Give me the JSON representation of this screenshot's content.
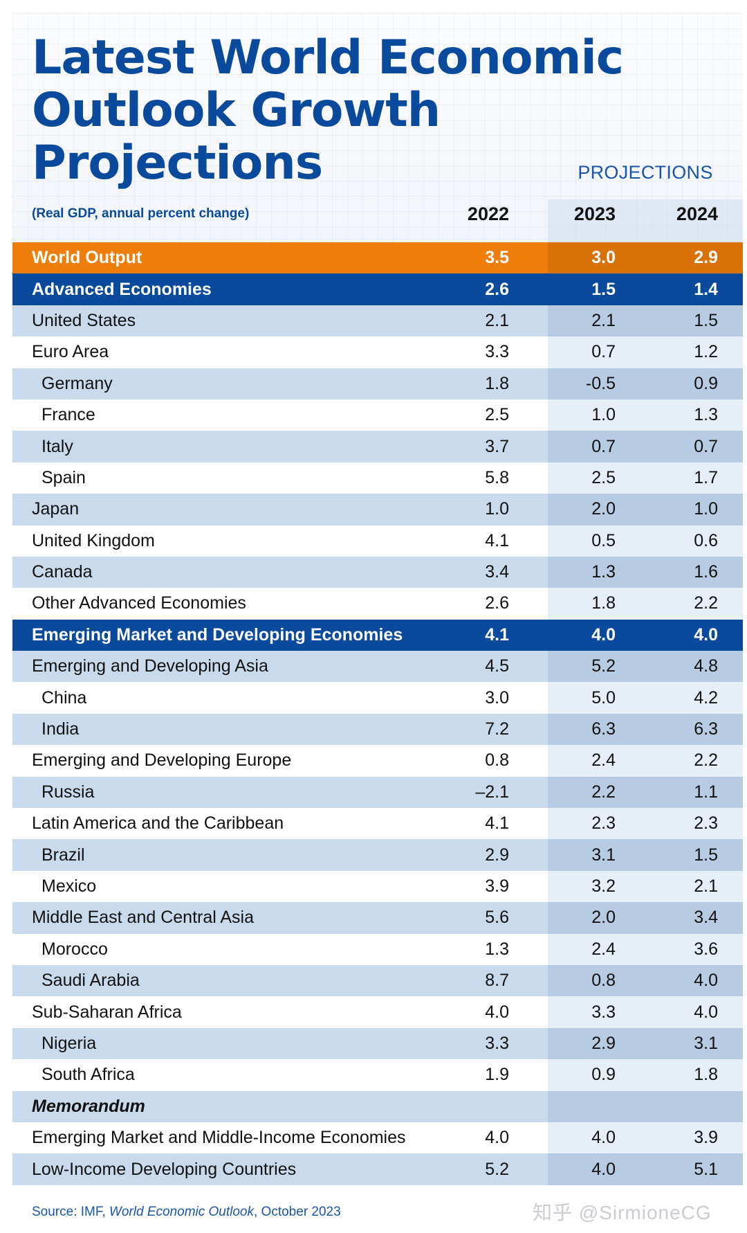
{
  "title": {
    "line1": "Latest World Economic",
    "line2": "Outlook Growth Projections"
  },
  "projections_label": "PROJECTIONS",
  "subheader": "(Real GDP, annual percent change)",
  "years": [
    "2022",
    "2023",
    "2024"
  ],
  "rows": [
    {
      "label": "World Output",
      "v": [
        "3.5",
        "3.0",
        "2.9"
      ]
    },
    {
      "label": "Advanced Economies",
      "v": [
        "2.6",
        "1.5",
        "1.4"
      ]
    },
    {
      "label": "United States",
      "v": [
        "2.1",
        "2.1",
        "1.5"
      ]
    },
    {
      "label": "Euro Area",
      "v": [
        "3.3",
        "0.7",
        "1.2"
      ]
    },
    {
      "label": "Germany",
      "v": [
        "1.8",
        "-0.5",
        "0.9"
      ]
    },
    {
      "label": "France",
      "v": [
        "2.5",
        "1.0",
        "1.3"
      ]
    },
    {
      "label": "Italy",
      "v": [
        "3.7",
        "0.7",
        "0.7"
      ]
    },
    {
      "label": "Spain",
      "v": [
        "5.8",
        "2.5",
        "1.7"
      ]
    },
    {
      "label": "Japan",
      "v": [
        "1.0",
        "2.0",
        "1.0"
      ]
    },
    {
      "label": "United Kingdom",
      "v": [
        "4.1",
        "0.5",
        "0.6"
      ]
    },
    {
      "label": "Canada",
      "v": [
        "3.4",
        "1.3",
        "1.6"
      ]
    },
    {
      "label": "Other Advanced Economies",
      "v": [
        "2.6",
        "1.8",
        "2.2"
      ]
    },
    {
      "label": "Emerging Market and Developing Economies",
      "v": [
        "4.1",
        "4.0",
        "4.0"
      ]
    },
    {
      "label": "Emerging and Developing Asia",
      "v": [
        "4.5",
        "5.2",
        "4.8"
      ]
    },
    {
      "label": "China",
      "v": [
        "3.0",
        "5.0",
        "4.2"
      ]
    },
    {
      "label": "India",
      "v": [
        "7.2",
        "6.3",
        "6.3"
      ]
    },
    {
      "label": "Emerging and Developing Europe",
      "v": [
        "0.8",
        "2.4",
        "2.2"
      ]
    },
    {
      "label": "Russia",
      "v": [
        "–2.1",
        "2.2",
        "1.1"
      ]
    },
    {
      "label": "Latin America and the Caribbean",
      "v": [
        "4.1",
        "2.3",
        "2.3"
      ]
    },
    {
      "label": "Brazil",
      "v": [
        "2.9",
        "3.1",
        "1.5"
      ]
    },
    {
      "label": "Mexico",
      "v": [
        "3.9",
        "3.2",
        "2.1"
      ]
    },
    {
      "label": "Middle East and Central Asia",
      "v": [
        "5.6",
        "2.0",
        "3.4"
      ]
    },
    {
      "label": "Morocco",
      "v": [
        "1.3",
        "2.4",
        "3.6"
      ]
    },
    {
      "label": "Saudi Arabia",
      "v": [
        "8.7",
        "0.8",
        "4.0"
      ]
    },
    {
      "label": "Sub-Saharan Africa",
      "v": [
        "4.0",
        "3.3",
        "4.0"
      ]
    },
    {
      "label": "Nigeria",
      "v": [
        "3.3",
        "2.9",
        "3.1"
      ]
    },
    {
      "label": "South Africa",
      "v": [
        "1.9",
        "0.9",
        "1.8"
      ]
    },
    {
      "label": "Memorandum",
      "v": [
        "",
        "",
        ""
      ]
    },
    {
      "label": "Emerging Market and Middle-Income Economies",
      "v": [
        "4.0",
        "4.0",
        "3.9"
      ]
    },
    {
      "label": "Low-Income Developing Countries",
      "v": [
        "5.2",
        "4.0",
        "5.1"
      ]
    }
  ],
  "source": {
    "prefix": "Source: IMF, ",
    "publication": "World Economic Outlook",
    "suffix": ", October 2023"
  },
  "watermark": "知乎 @SirmioneCG",
  "colors": {
    "title_blue": "#0a4a9c",
    "world_output_orange": "#ef7d0a",
    "row_light_blue": "#c9daec"
  }
}
